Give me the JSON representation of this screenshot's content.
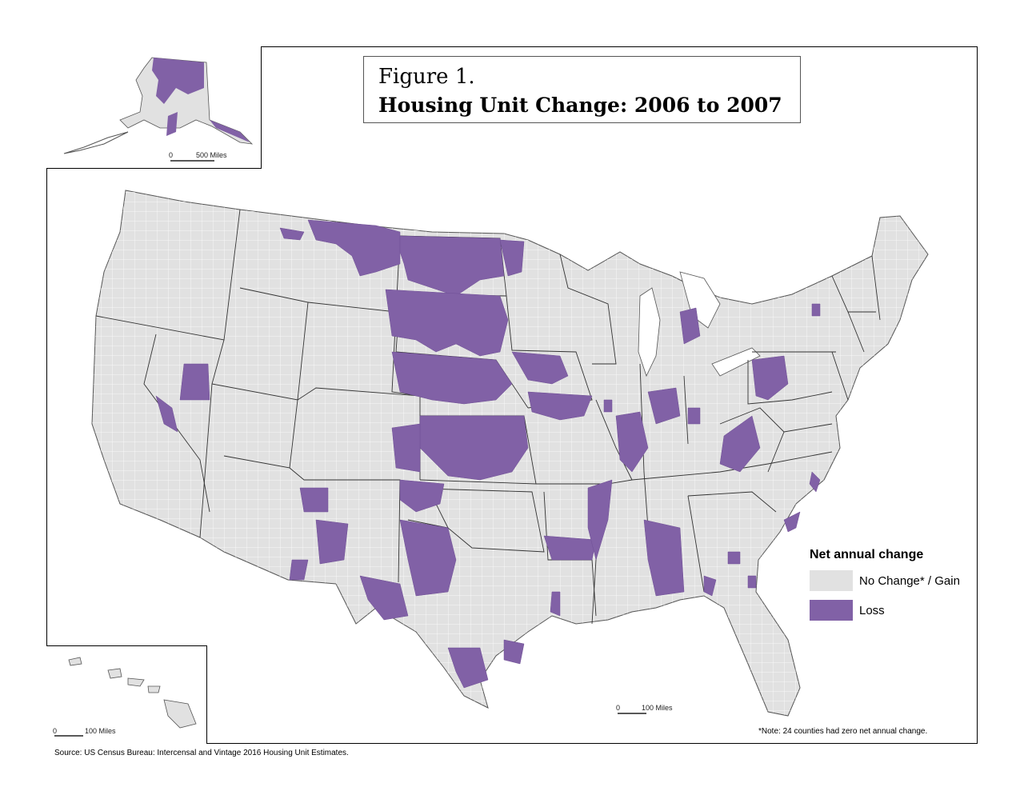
{
  "title": {
    "line1": "Figure 1.",
    "line2": "Housing Unit Change: 2006 to 2007"
  },
  "legend": {
    "title": "Net annual change",
    "items": [
      {
        "label": "No Change* / Gain",
        "color": "#e1e1e1"
      },
      {
        "label": "Loss",
        "color": "#8161a6"
      }
    ]
  },
  "scales": {
    "alaska": {
      "zero": "0",
      "distance": "500 Miles"
    },
    "hawaii": {
      "zero": "0",
      "distance": "100 Miles"
    },
    "mainland": {
      "zero": "0",
      "distance": "100 Miles"
    }
  },
  "note": "*Note: 24 counties had zero net annual change.",
  "source": "Source: US Census Bureau: Intercensal and Vintage 2016 Housing Unit Estimates.",
  "colors": {
    "no_change_gain": "#e1e1e1",
    "loss": "#8161a6",
    "borders": "#ffffff",
    "state_lines": "#333333"
  }
}
